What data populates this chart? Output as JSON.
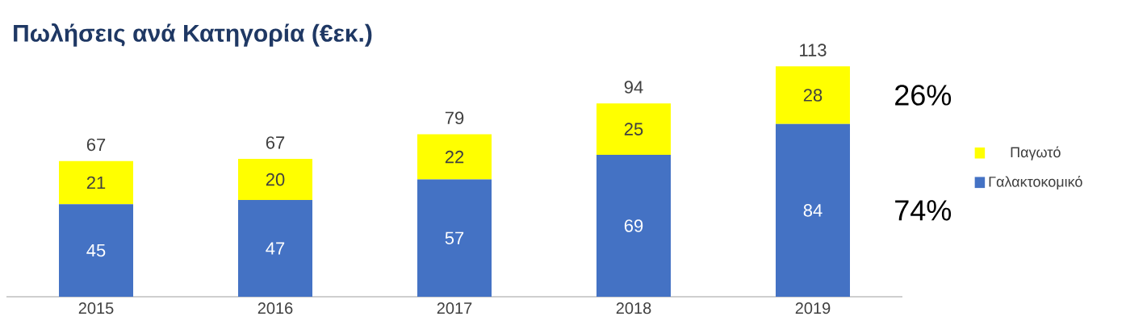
{
  "chart_data": {
    "type": "bar",
    "title": "Πωλήσεις ανά Κατηγορία (€εκ.)",
    "categories": [
      "2015",
      "2016",
      "2017",
      "2018",
      "2019"
    ],
    "stacked": true,
    "series": [
      {
        "name": "Γαλακτοκομικό",
        "color": "#4472c4",
        "values": [
          45,
          47,
          57,
          69,
          84
        ]
      },
      {
        "name": "Παγωτό",
        "color": "#ffff00",
        "values": [
          21,
          20,
          22,
          25,
          28
        ]
      }
    ],
    "data_labels": true,
    "totals": [
      "67",
      "67",
      "79",
      "94",
      "113"
    ],
    "annotations": [
      "26%",
      "74%"
    ],
    "legend": "right"
  }
}
